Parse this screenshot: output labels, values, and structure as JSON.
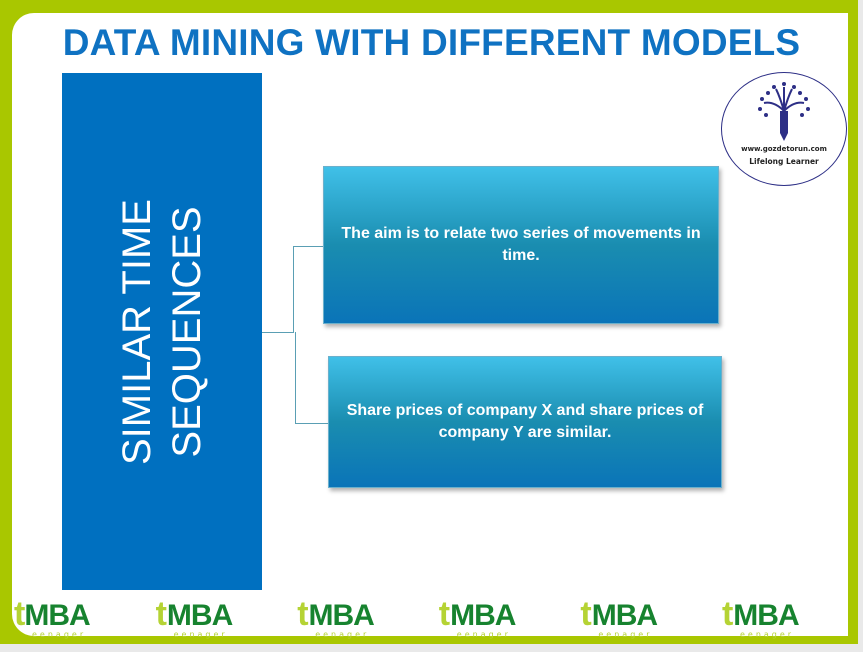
{
  "title": "DATA MINING WITH DIFFERENT MODELS",
  "main": {
    "topic_line1": "SIMILAR TIME",
    "topic_line2": "SEQUENCES",
    "boxes": [
      {
        "text": "The aim is to relate two series of movements in time."
      },
      {
        "text": "Share prices of company X and share prices of company Y are similar."
      }
    ]
  },
  "logo": {
    "url": "www.gozdetorun.com",
    "tagline": "Lifelong Learner"
  },
  "footer": {
    "brand": "tMBA",
    "brand_t": "t",
    "brand_rest": "MBA",
    "sub": "eenager",
    "count": 6
  },
  "colors": {
    "frame": "#a9c700",
    "title": "#0f72c2",
    "bar": "#0070c0"
  }
}
